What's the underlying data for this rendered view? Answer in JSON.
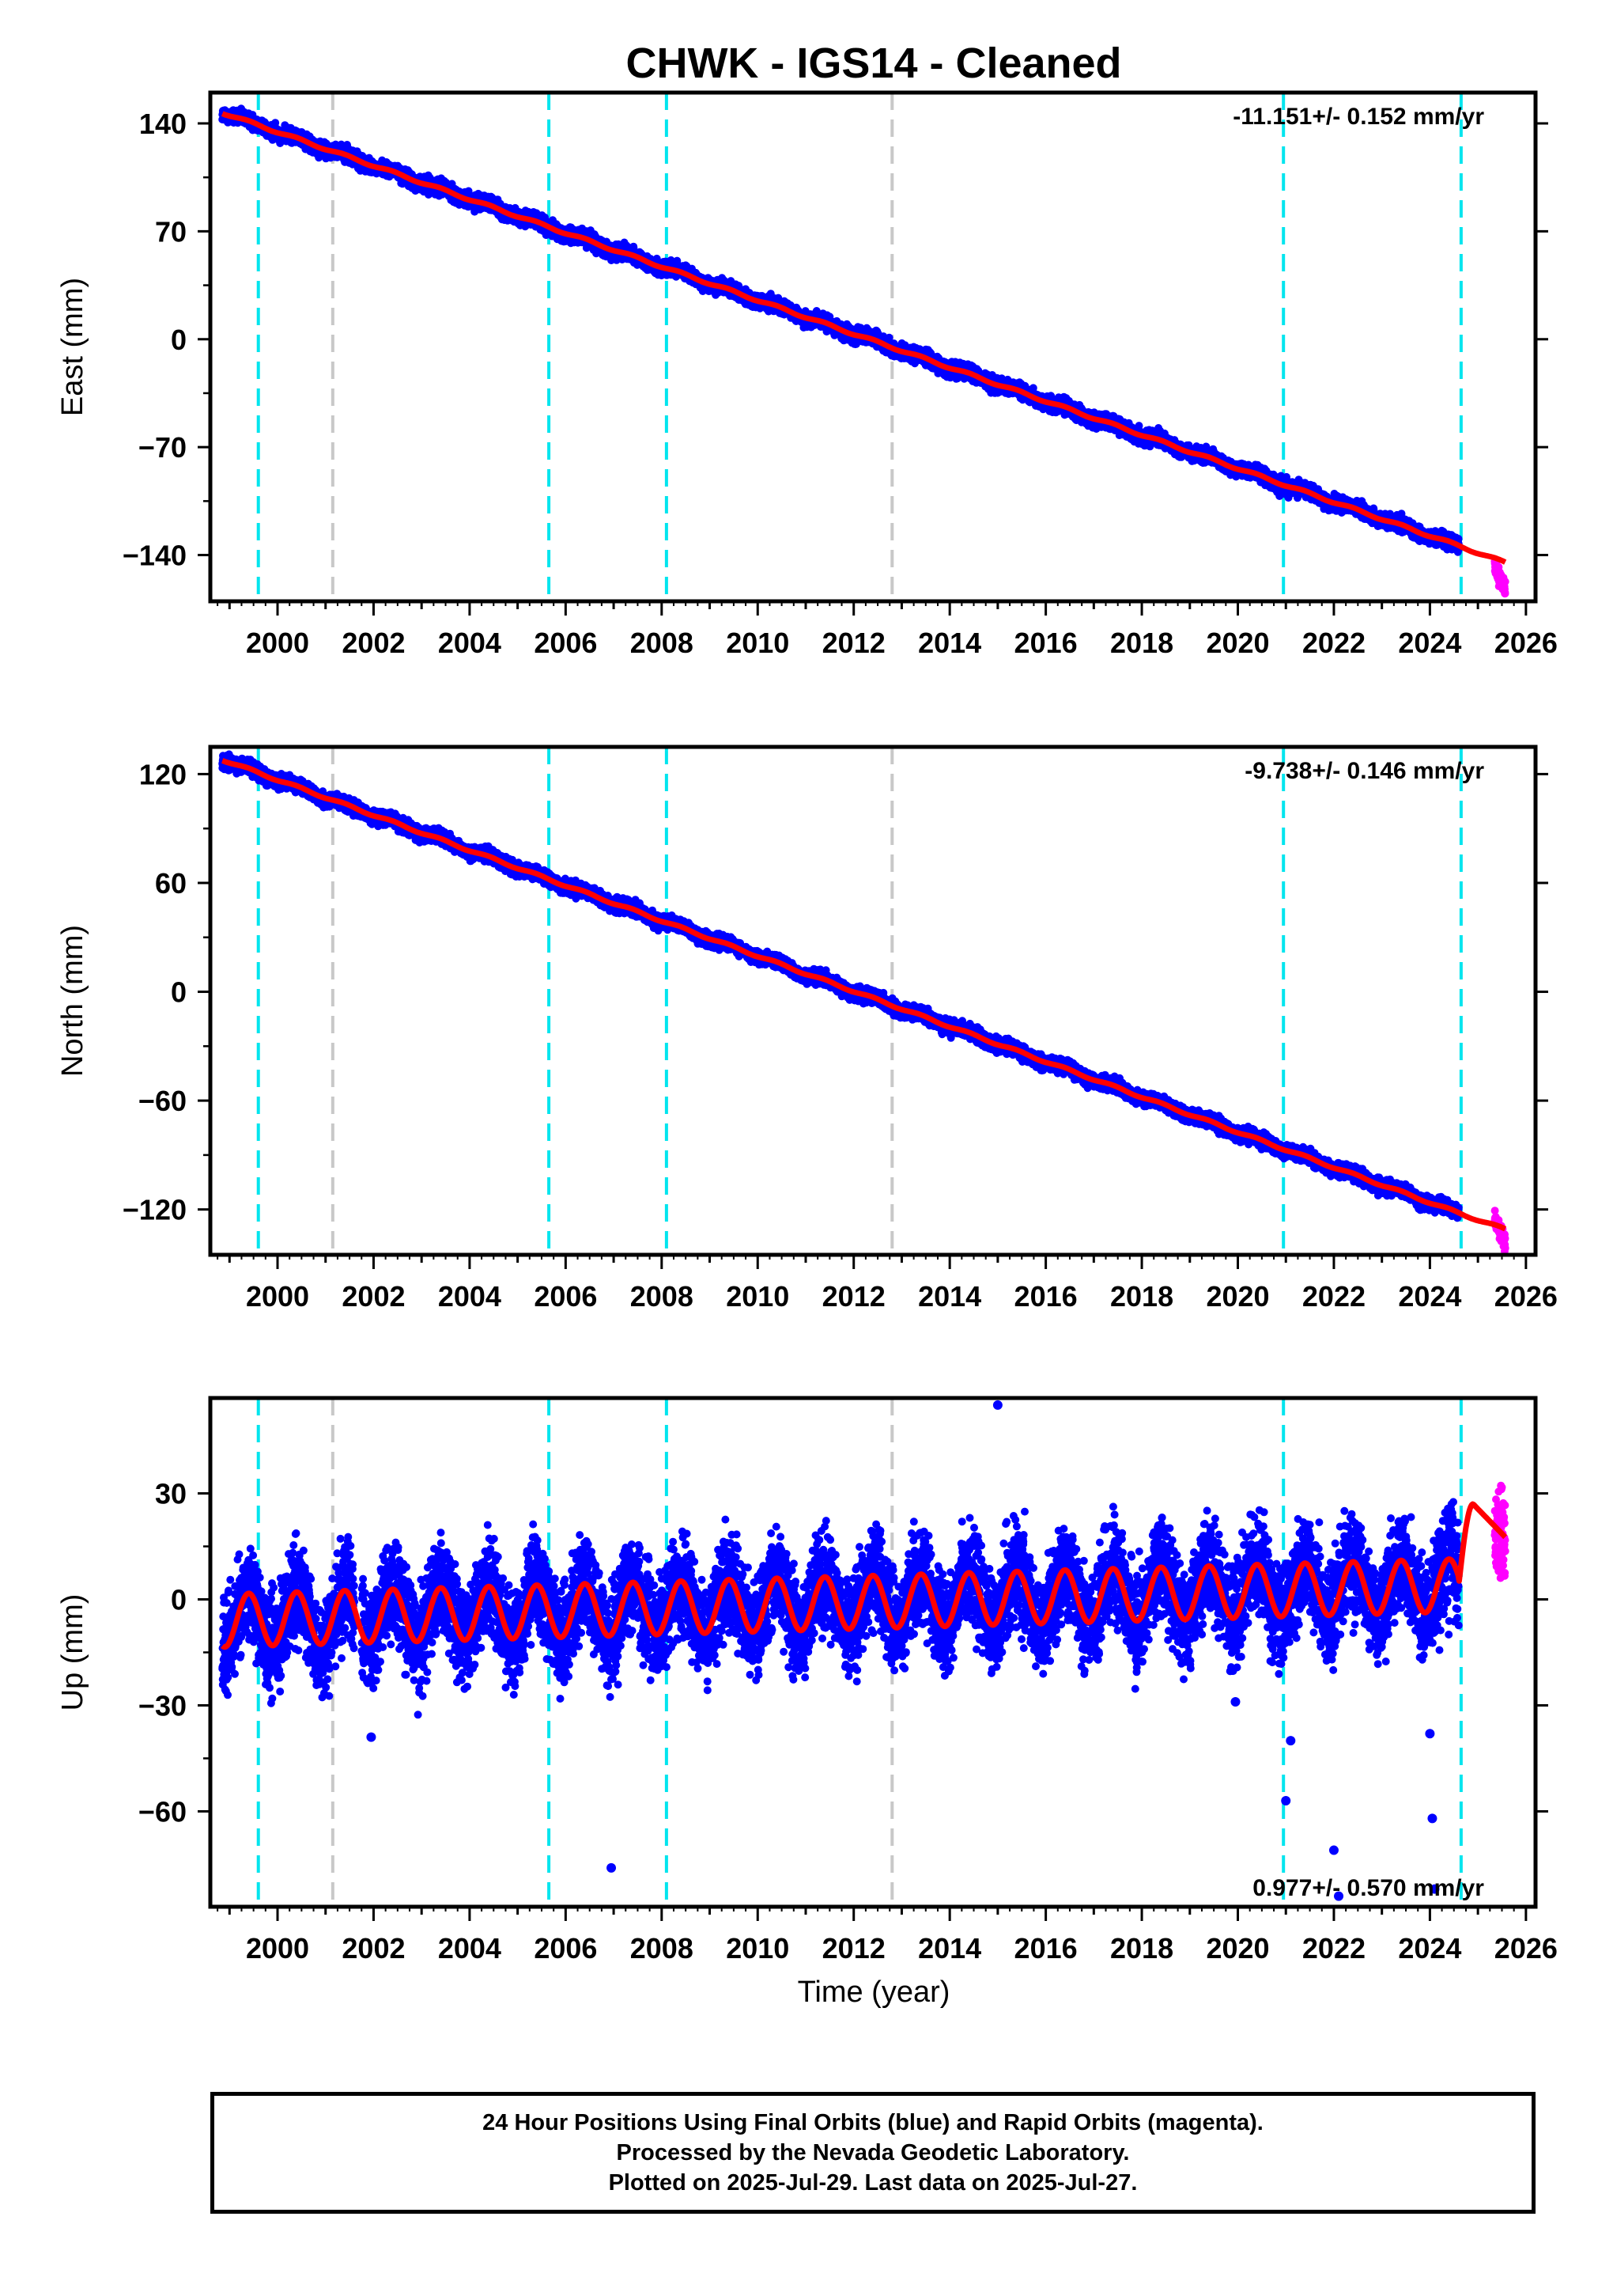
{
  "chart_data": {
    "type": "scatter",
    "title": "CHWK  - IGS14 - Cleaned",
    "xlabel": "Time (year)",
    "xlim": [
      1998.6,
      2026.2
    ],
    "x_ticks": [
      "2000",
      "2002",
      "2004",
      "2006",
      "2008",
      "2010",
      "2012",
      "2014",
      "2016",
      "2018",
      "2020",
      "2022",
      "2024",
      "2026"
    ],
    "legend": "none",
    "grid": false,
    "colors": {
      "final_orbits": "#0000ff",
      "rapid_orbits": "#ff00ff",
      "model": "#ff0000",
      "equipment_change": "#00e5ee",
      "earthquake": "#c8c8c8"
    },
    "data_span": {
      "start": 1998.85,
      "final_end": 2024.6,
      "rapid_start": 2025.35,
      "end": 2025.57
    },
    "offset_lines": [
      {
        "x": 1999.6,
        "color": "cyan"
      },
      {
        "x": 2001.15,
        "color": "gray"
      },
      {
        "x": 2005.65,
        "color": "cyan"
      },
      {
        "x": 2008.1,
        "color": "cyan"
      },
      {
        "x": 2012.8,
        "color": "gray"
      },
      {
        "x": 2020.95,
        "color": "cyan"
      },
      {
        "x": 2024.65,
        "color": "cyan"
      }
    ],
    "panels": [
      {
        "name": "east",
        "ylabel": "East (mm)",
        "ylim": [
          -170,
          160
        ],
        "y_ticks": [
          140,
          70,
          0,
          -70,
          -140
        ],
        "y_tick_labels": [
          "140",
          "70",
          "0",
          "−70",
          "−140"
        ],
        "rate_text": "-11.151+/- 0.152 mm/yr",
        "rate_position": "top-right",
        "series": [
          {
            "kind": "final",
            "x": [
              1998.85,
              2024.6
            ],
            "y": [
              147,
              -134
            ]
          },
          {
            "kind": "model",
            "x": [
              1998.85,
              2024.6,
              2025.57
            ],
            "y": [
              147,
              -134,
              -145
            ]
          },
          {
            "kind": "rapid",
            "x": [
              2025.35,
              2025.57
            ],
            "y": [
              -147,
              -162
            ]
          }
        ],
        "scatter_half_width": 5,
        "seasonal_amplitude": 1.5
      },
      {
        "name": "north",
        "ylabel": "North (mm)",
        "ylim": [
          -145,
          135
        ],
        "y_ticks": [
          120,
          60,
          0,
          -60,
          -120
        ],
        "y_tick_labels": [
          "120",
          "60",
          "0",
          "−60",
          "−120"
        ],
        "rate_text": "-9.738+/- 0.146 mm/yr",
        "rate_position": "top-right",
        "series": [
          {
            "kind": "final",
            "x": [
              1998.85,
              2024.6
            ],
            "y": [
              128,
              -122
            ]
          },
          {
            "kind": "model",
            "x": [
              1998.85,
              2024.6,
              2025.57
            ],
            "y": [
              128,
              -122,
              -131
            ]
          },
          {
            "kind": "rapid",
            "x": [
              2025.35,
              2025.57
            ],
            "y": [
              -125,
              -138
            ]
          }
        ],
        "scatter_half_width": 4,
        "seasonal_amplitude": 1.2
      },
      {
        "name": "up",
        "ylabel": "Up (mm)",
        "ylim": [
          -87,
          57
        ],
        "y_ticks": [
          30,
          0,
          -30,
          -60
        ],
        "y_tick_labels": [
          "30",
          "0",
          "−30",
          "−60"
        ],
        "rate_text": "0.977+/- 0.570 mm/yr",
        "rate_position": "bottom-right",
        "series": [
          {
            "kind": "final",
            "x": [
              1998.85,
              2024.6
            ],
            "y": [
              -6,
              4
            ]
          },
          {
            "kind": "rapid",
            "x": [
              2025.35,
              2025.57
            ],
            "y": [
              -5,
              42
            ]
          }
        ],
        "seasonal_amplitude": 7.5,
        "scatter_half_width": 15,
        "model_peak_2024_9": 27,
        "outliers": [
          {
            "x": 2015.0,
            "y": 55
          },
          {
            "x": 2006.95,
            "y": -76
          },
          {
            "x": 2021.0,
            "y": -57
          },
          {
            "x": 2021.1,
            "y": -40
          },
          {
            "x": 2022.0,
            "y": -71
          },
          {
            "x": 2022.1,
            "y": -84
          },
          {
            "x": 2024.0,
            "y": -38
          },
          {
            "x": 2024.05,
            "y": -62
          },
          {
            "x": 2024.1,
            "y": -82
          },
          {
            "x": 2001.95,
            "y": -39
          },
          {
            "x": 2019.95,
            "y": -29
          }
        ]
      }
    ]
  },
  "footer": {
    "line1": "24 Hour Positions Using Final Orbits (blue) and Rapid Orbits (magenta).",
    "line2": "Processed by the Nevada Geodetic Laboratory.",
    "line3": "Plotted on 2025-Jul-29. Last data on 2025-Jul-27."
  }
}
